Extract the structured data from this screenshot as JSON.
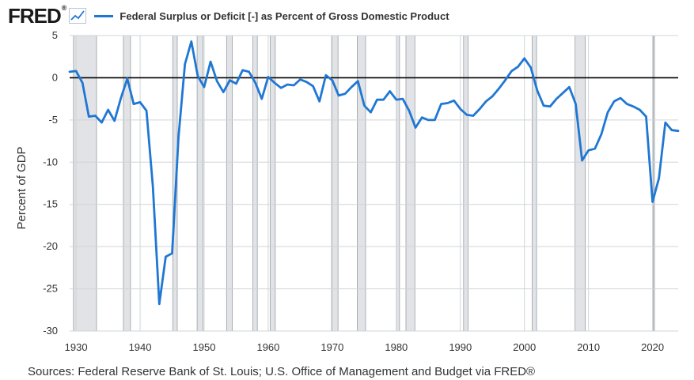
{
  "header": {
    "logo_text": "FRED",
    "logo_mark": "®",
    "logo_icon": "line-chart-icon"
  },
  "source": "Sources: Federal Reserve Bank of St. Louis; U.S. Office of Management and Budget via FRED®",
  "chart_data": {
    "type": "line",
    "title": "",
    "xlabel": "",
    "ylabel": "Percent of GDP",
    "xlim": [
      1929,
      2024
    ],
    "ylim": [
      -30,
      5
    ],
    "x_ticks": [
      1930,
      1940,
      1950,
      1960,
      1970,
      1980,
      1990,
      2000,
      2010,
      2020
    ],
    "y_ticks": [
      5,
      0,
      -5,
      -10,
      -15,
      -20,
      -25,
      -30
    ],
    "grid": true,
    "legend_position": "top-left",
    "zero_line": true,
    "colors": {
      "line": "#1f77d4",
      "recession": "#e1e3e6",
      "recession_edge": "#9aa0a6",
      "grid": "#d0d4d8",
      "zero_line": "#000000",
      "plot_background": "#ffffff"
    },
    "recessions": [
      [
        1929.6,
        1933.2
      ],
      [
        1937.4,
        1938.5
      ],
      [
        1945.1,
        1945.8
      ],
      [
        1948.9,
        1949.8
      ],
      [
        1953.5,
        1954.4
      ],
      [
        1957.6,
        1958.3
      ],
      [
        1960.3,
        1961.1
      ],
      [
        1969.9,
        1970.9
      ],
      [
        1973.9,
        1975.2
      ],
      [
        1980.0,
        1980.5
      ],
      [
        1981.5,
        1982.9
      ],
      [
        1990.5,
        1991.2
      ],
      [
        2001.2,
        2001.9
      ],
      [
        2007.9,
        2009.5
      ],
      [
        2020.1,
        2020.3
      ]
    ],
    "series": [
      {
        "name": "Federal Surplus or Deficit [-] as Percent of Gross Domestic Product",
        "x": [
          1929,
          1930,
          1931,
          1932,
          1933,
          1934,
          1935,
          1936,
          1937,
          1938,
          1939,
          1940,
          1941,
          1942,
          1943,
          1944,
          1945,
          1946,
          1947,
          1948,
          1949,
          1950,
          1951,
          1952,
          1953,
          1954,
          1955,
          1956,
          1957,
          1958,
          1959,
          1960,
          1961,
          1962,
          1963,
          1964,
          1965,
          1966,
          1967,
          1968,
          1969,
          1970,
          1971,
          1972,
          1973,
          1974,
          1975,
          1976,
          1977,
          1978,
          1979,
          1980,
          1981,
          1982,
          1983,
          1984,
          1985,
          1986,
          1987,
          1988,
          1989,
          1990,
          1991,
          1992,
          1993,
          1994,
          1995,
          1996,
          1997,
          1998,
          1999,
          2000,
          2001,
          2002,
          2003,
          2004,
          2005,
          2006,
          2007,
          2008,
          2009,
          2010,
          2011,
          2012,
          2013,
          2014,
          2015,
          2016,
          2017,
          2018,
          2019,
          2020,
          2021,
          2022,
          2023,
          2024
        ],
        "values": [
          0.7,
          0.8,
          -0.6,
          -4.6,
          -4.5,
          -5.3,
          -3.8,
          -5.1,
          -2.4,
          -0.1,
          -3.1,
          -2.9,
          -3.9,
          -12.9,
          -26.8,
          -21.2,
          -20.8,
          -7.0,
          1.6,
          4.3,
          0.2,
          -1.1,
          1.9,
          -0.4,
          -1.7,
          -0.3,
          -0.7,
          0.9,
          0.7,
          -0.6,
          -2.5,
          0.1,
          -0.6,
          -1.2,
          -0.8,
          -0.9,
          -0.2,
          -0.5,
          -1.0,
          -2.8,
          0.3,
          -0.3,
          -2.1,
          -1.9,
          -1.1,
          -0.4,
          -3.3,
          -4.1,
          -2.6,
          -2.6,
          -1.6,
          -2.6,
          -2.5,
          -3.9,
          -5.9,
          -4.7,
          -5.0,
          -5.0,
          -3.1,
          -3.0,
          -2.7,
          -3.7,
          -4.4,
          -4.5,
          -3.7,
          -2.8,
          -2.2,
          -1.3,
          -0.3,
          0.8,
          1.3,
          2.3,
          1.2,
          -1.5,
          -3.3,
          -3.4,
          -2.5,
          -1.8,
          -1.1,
          -3.1,
          -9.8,
          -8.6,
          -8.4,
          -6.7,
          -4.1,
          -2.8,
          -2.4,
          -3.1,
          -3.4,
          -3.8,
          -4.6,
          -14.7,
          -11.9,
          -5.3,
          -6.2,
          -6.3
        ]
      }
    ]
  }
}
